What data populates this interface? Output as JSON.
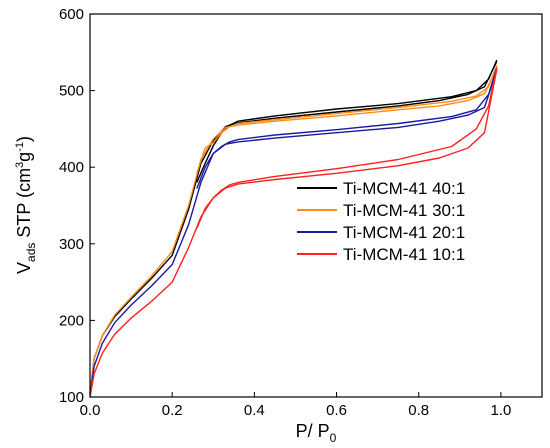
{
  "chart_data": {
    "type": "line",
    "xlabel": {
      "main": "P/ P",
      "sub": "0"
    },
    "ylabel": {
      "main": "V",
      "sub": "ads",
      "rest": " STP (cm",
      "sup1": "3",
      "mid": "g",
      "sup2": "-1",
      "end": ")"
    },
    "xlim": [
      0.0,
      1.1
    ],
    "ylim": [
      100,
      600
    ],
    "xticks": [
      0.0,
      0.2,
      0.4,
      0.6,
      0.8,
      1.0
    ],
    "yticks": [
      100,
      200,
      300,
      400,
      500,
      600
    ],
    "xtick_labels": [
      "0.0",
      "0.2",
      "0.4",
      "0.6",
      "0.8",
      "1.0"
    ],
    "ytick_labels": [
      "100",
      "200",
      "300",
      "400",
      "500",
      "600"
    ],
    "grid": false,
    "legend_position": "center-right",
    "series": [
      {
        "name": "Ti-MCM-41 40:1",
        "color": "#000000",
        "adsorption": [
          [
            0.0,
            105
          ],
          [
            0.01,
            150
          ],
          [
            0.03,
            180
          ],
          [
            0.06,
            205
          ],
          [
            0.1,
            228
          ],
          [
            0.15,
            255
          ],
          [
            0.2,
            285
          ],
          [
            0.24,
            345
          ],
          [
            0.27,
            405
          ],
          [
            0.3,
            435
          ],
          [
            0.33,
            453
          ],
          [
            0.36,
            458
          ],
          [
            0.45,
            464
          ],
          [
            0.6,
            472
          ],
          [
            0.75,
            480
          ],
          [
            0.85,
            487
          ],
          [
            0.92,
            495
          ],
          [
            0.96,
            505
          ],
          [
            0.99,
            538
          ]
        ],
        "desorption": [
          [
            0.99,
            540
          ],
          [
            0.97,
            515
          ],
          [
            0.94,
            500
          ],
          [
            0.88,
            492
          ],
          [
            0.75,
            483
          ],
          [
            0.6,
            476
          ],
          [
            0.45,
            467
          ],
          [
            0.36,
            460
          ],
          [
            0.34,
            455
          ],
          [
            0.32,
            445
          ],
          [
            0.3,
            428
          ],
          [
            0.28,
            405
          ],
          [
            0.26,
            380
          ]
        ]
      },
      {
        "name": "Ti-MCM-41 30:1",
        "color": "#ff8c1a",
        "adsorption": [
          [
            0.0,
            105
          ],
          [
            0.01,
            150
          ],
          [
            0.03,
            180
          ],
          [
            0.06,
            207
          ],
          [
            0.1,
            230
          ],
          [
            0.15,
            258
          ],
          [
            0.2,
            290
          ],
          [
            0.24,
            350
          ],
          [
            0.27,
            410
          ],
          [
            0.3,
            437
          ],
          [
            0.33,
            452
          ],
          [
            0.36,
            455
          ],
          [
            0.45,
            460
          ],
          [
            0.6,
            467
          ],
          [
            0.75,
            475
          ],
          [
            0.85,
            480
          ],
          [
            0.92,
            487
          ],
          [
            0.96,
            496
          ],
          [
            0.99,
            530
          ]
        ],
        "desorption": [
          [
            0.99,
            533
          ],
          [
            0.97,
            505
          ],
          [
            0.94,
            493
          ],
          [
            0.88,
            486
          ],
          [
            0.75,
            478
          ],
          [
            0.6,
            470
          ],
          [
            0.45,
            462
          ],
          [
            0.36,
            457
          ],
          [
            0.34,
            453
          ],
          [
            0.32,
            445
          ],
          [
            0.3,
            432
          ],
          [
            0.28,
            425
          ],
          [
            0.26,
            392
          ]
        ]
      },
      {
        "name": "Ti-MCM-41 20:1",
        "color": "#1a1aa0",
        "adsorption": [
          [
            0.0,
            100
          ],
          [
            0.01,
            140
          ],
          [
            0.03,
            170
          ],
          [
            0.06,
            197
          ],
          [
            0.1,
            220
          ],
          [
            0.15,
            245
          ],
          [
            0.2,
            273
          ],
          [
            0.24,
            325
          ],
          [
            0.27,
            380
          ],
          [
            0.3,
            418
          ],
          [
            0.33,
            430
          ],
          [
            0.36,
            433
          ],
          [
            0.45,
            438
          ],
          [
            0.6,
            445
          ],
          [
            0.75,
            452
          ],
          [
            0.85,
            460
          ],
          [
            0.92,
            468
          ],
          [
            0.96,
            478
          ],
          [
            0.99,
            527
          ]
        ],
        "desorption": [
          [
            0.99,
            530
          ],
          [
            0.97,
            495
          ],
          [
            0.94,
            475
          ],
          [
            0.88,
            466
          ],
          [
            0.75,
            457
          ],
          [
            0.6,
            449
          ],
          [
            0.45,
            442
          ],
          [
            0.36,
            436
          ],
          [
            0.34,
            433
          ],
          [
            0.32,
            427
          ],
          [
            0.3,
            418
          ],
          [
            0.28,
            400
          ],
          [
            0.26,
            372
          ]
        ]
      },
      {
        "name": "Ti-MCM-41 10:1",
        "color": "#ff2020",
        "adsorption": [
          [
            0.0,
            100
          ],
          [
            0.01,
            130
          ],
          [
            0.03,
            157
          ],
          [
            0.06,
            182
          ],
          [
            0.1,
            203
          ],
          [
            0.15,
            225
          ],
          [
            0.2,
            250
          ],
          [
            0.24,
            295
          ],
          [
            0.27,
            335
          ],
          [
            0.3,
            360
          ],
          [
            0.33,
            373
          ],
          [
            0.36,
            378
          ],
          [
            0.45,
            384
          ],
          [
            0.6,
            392
          ],
          [
            0.75,
            402
          ],
          [
            0.85,
            412
          ],
          [
            0.92,
            425
          ],
          [
            0.96,
            445
          ],
          [
            0.99,
            528
          ]
        ],
        "desorption": [
          [
            0.99,
            530
          ],
          [
            0.97,
            480
          ],
          [
            0.94,
            450
          ],
          [
            0.88,
            427
          ],
          [
            0.75,
            410
          ],
          [
            0.6,
            398
          ],
          [
            0.45,
            388
          ],
          [
            0.36,
            380
          ],
          [
            0.34,
            377
          ],
          [
            0.32,
            370
          ],
          [
            0.3,
            360
          ],
          [
            0.28,
            346
          ],
          [
            0.26,
            320
          ]
        ]
      }
    ]
  }
}
